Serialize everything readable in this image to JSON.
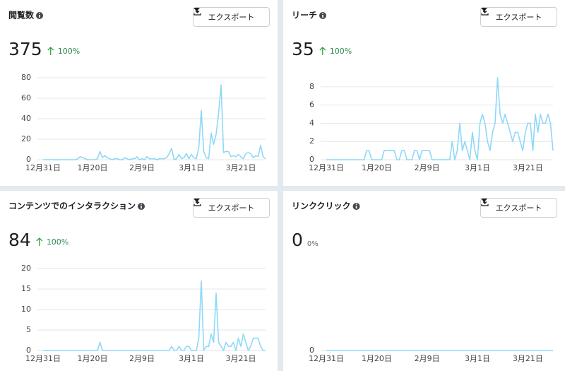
{
  "chart_data": [
    {
      "type": "line",
      "title": "閲覧数",
      "total": "375",
      "change": "100%",
      "trend": "up",
      "export_label": "エクスポート",
      "color": "#8fd8f8",
      "categories": [
        "12月31日",
        null,
        null,
        null,
        null,
        null,
        null,
        null,
        null,
        null,
        null,
        null,
        null,
        null,
        null,
        null,
        null,
        null,
        null,
        null,
        "1月20日",
        null,
        null,
        null,
        null,
        null,
        null,
        null,
        null,
        null,
        null,
        null,
        null,
        null,
        null,
        null,
        null,
        null,
        null,
        null,
        "2月9日",
        null,
        null,
        null,
        null,
        null,
        null,
        null,
        null,
        null,
        null,
        null,
        null,
        null,
        null,
        null,
        null,
        null,
        null,
        null,
        "3月1日",
        null,
        null,
        null,
        null,
        null,
        null,
        null,
        null,
        null,
        null,
        null,
        null,
        null,
        null,
        null,
        null,
        null,
        null,
        null,
        "3月21日",
        null,
        null,
        null,
        null,
        null,
        null,
        null,
        null,
        null,
        null
      ],
      "values": [
        0,
        0,
        0,
        0,
        0,
        0,
        0,
        0,
        0,
        0,
        0,
        0,
        0,
        0,
        1,
        3,
        2,
        1,
        0,
        0,
        0,
        0,
        1,
        8,
        2,
        4,
        2,
        1,
        0,
        1,
        1,
        0,
        0,
        2,
        1,
        0,
        1,
        1,
        3,
        0,
        1,
        0,
        3,
        1,
        1,
        1,
        0,
        1,
        1,
        1,
        2,
        6,
        11,
        0,
        1,
        5,
        1,
        2,
        6,
        1,
        5,
        2,
        1,
        12,
        48,
        8,
        2,
        1,
        26,
        15,
        25,
        45,
        73,
        7,
        8,
        8,
        3,
        4,
        3,
        5,
        3,
        1,
        6,
        7,
        6,
        2,
        4,
        3,
        14,
        3,
        1
      ],
      "ylim": [
        0,
        80
      ],
      "yticks": [
        0,
        20,
        40,
        60,
        80
      ],
      "grid": true
    },
    {
      "type": "line",
      "title": "リーチ",
      "total": "35",
      "change": "100%",
      "trend": "up",
      "export_label": "エクスポート",
      "color": "#8fd8f8",
      "categories": [
        "12月31日",
        null,
        null,
        null,
        null,
        null,
        null,
        null,
        null,
        null,
        null,
        null,
        null,
        null,
        null,
        null,
        null,
        null,
        null,
        null,
        "1月20日",
        null,
        null,
        null,
        null,
        null,
        null,
        null,
        null,
        null,
        null,
        null,
        null,
        null,
        null,
        null,
        null,
        null,
        null,
        null,
        "2月9日",
        null,
        null,
        null,
        null,
        null,
        null,
        null,
        null,
        null,
        null,
        null,
        null,
        null,
        null,
        null,
        null,
        null,
        null,
        null,
        "3月1日",
        null,
        null,
        null,
        null,
        null,
        null,
        null,
        null,
        null,
        null,
        null,
        null,
        null,
        null,
        null,
        null,
        null,
        null,
        null,
        "3月21日",
        null,
        null,
        null,
        null,
        null,
        null,
        null,
        null,
        null,
        null
      ],
      "values": [
        0,
        0,
        0,
        0,
        0,
        0,
        0,
        0,
        0,
        0,
        0,
        0,
        0,
        0,
        0,
        0,
        1,
        1,
        0,
        0,
        0,
        0,
        0,
        1,
        1,
        1,
        1,
        1,
        0,
        0,
        1,
        1,
        0,
        0,
        0,
        1,
        1,
        0,
        1,
        1,
        1,
        1,
        0,
        0,
        0,
        0,
        0,
        0,
        0,
        0,
        2,
        0,
        1,
        4,
        1,
        2,
        1,
        0,
        3,
        1,
        0,
        4,
        5,
        4,
        2,
        1,
        3,
        4,
        9,
        5,
        4,
        5,
        4,
        3,
        2,
        3,
        3,
        2,
        1,
        3,
        4,
        4,
        1,
        5,
        3,
        5,
        4,
        4,
        5,
        4,
        1
      ],
      "ylim": [
        0,
        9
      ],
      "yticks": [
        0,
        2,
        4,
        6,
        8
      ],
      "grid": true
    },
    {
      "type": "line",
      "title": "コンテンツでのインタラクション",
      "total": "84",
      "change": "100%",
      "trend": "up",
      "export_label": "エクスポート",
      "color": "#8fd8f8",
      "categories": [
        "12月31日",
        null,
        null,
        null,
        null,
        null,
        null,
        null,
        null,
        null,
        null,
        null,
        null,
        null,
        null,
        null,
        null,
        null,
        null,
        null,
        "1月20日",
        null,
        null,
        null,
        null,
        null,
        null,
        null,
        null,
        null,
        null,
        null,
        null,
        null,
        null,
        null,
        null,
        null,
        null,
        null,
        "2月9日",
        null,
        null,
        null,
        null,
        null,
        null,
        null,
        null,
        null,
        null,
        null,
        null,
        null,
        null,
        null,
        null,
        null,
        null,
        null,
        "3月1日",
        null,
        null,
        null,
        null,
        null,
        null,
        null,
        null,
        null,
        null,
        null,
        null,
        null,
        null,
        null,
        null,
        null,
        null,
        null,
        "3月21日",
        null,
        null,
        null,
        null,
        null,
        null,
        null,
        null,
        null,
        null
      ],
      "values": [
        0,
        0,
        0,
        0,
        0,
        0,
        0,
        0,
        0,
        0,
        0,
        0,
        0,
        0,
        0,
        0,
        0,
        0,
        0,
        0,
        0,
        0,
        0,
        2,
        0,
        0,
        0,
        0,
        0,
        0,
        0,
        0,
        0,
        0,
        0,
        0,
        0,
        0,
        0,
        0,
        0,
        0,
        0,
        0,
        0,
        0,
        0,
        0,
        0,
        0,
        0,
        0,
        1,
        0,
        0,
        1,
        0,
        0,
        1,
        1,
        0,
        0,
        0,
        3,
        17,
        0,
        1,
        1,
        4,
        2,
        14,
        2,
        1,
        0,
        2,
        1,
        1,
        2,
        0,
        3,
        1,
        4,
        2,
        0,
        1,
        3,
        3,
        3,
        1,
        0,
        0
      ],
      "ylim": [
        0,
        20
      ],
      "yticks": [
        0,
        5,
        10,
        15,
        20
      ],
      "grid": true
    },
    {
      "type": "line",
      "title": "リンククリック",
      "total": "0",
      "change": "0%",
      "export_label": "エクスポート",
      "color": "#8fd8f8",
      "categories": [
        "12月31日",
        null,
        null,
        null,
        null,
        null,
        null,
        null,
        null,
        null,
        null,
        null,
        null,
        null,
        null,
        null,
        null,
        null,
        null,
        null,
        "1月20日",
        null,
        null,
        null,
        null,
        null,
        null,
        null,
        null,
        null,
        null,
        null,
        null,
        null,
        null,
        null,
        null,
        null,
        null,
        null,
        "2月9日",
        null,
        null,
        null,
        null,
        null,
        null,
        null,
        null,
        null,
        null,
        null,
        null,
        null,
        null,
        null,
        null,
        null,
        null,
        null,
        "3月1日",
        null,
        null,
        null,
        null,
        null,
        null,
        null,
        null,
        null,
        null,
        null,
        null,
        null,
        null,
        null,
        null,
        null,
        null,
        null,
        "3月21日",
        null,
        null,
        null,
        null,
        null,
        null,
        null,
        null,
        null,
        null
      ],
      "values": [
        0,
        0,
        0,
        0,
        0,
        0,
        0,
        0,
        0,
        0,
        0,
        0,
        0,
        0,
        0,
        0,
        0,
        0,
        0,
        0,
        0,
        0,
        0,
        0,
        0,
        0,
        0,
        0,
        0,
        0,
        0,
        0,
        0,
        0,
        0,
        0,
        0,
        0,
        0,
        0,
        0,
        0,
        0,
        0,
        0,
        0,
        0,
        0,
        0,
        0,
        0,
        0,
        0,
        0,
        0,
        0,
        0,
        0,
        0,
        0,
        0,
        0,
        0,
        0,
        0,
        0,
        0,
        0,
        0,
        0,
        0,
        0,
        0,
        0,
        0,
        0,
        0,
        0,
        0,
        0,
        0,
        0,
        0,
        0,
        0,
        0,
        0,
        0,
        0,
        0,
        0
      ],
      "ylim": [
        0,
        1
      ],
      "yticks": [
        0
      ],
      "grid": true
    }
  ]
}
